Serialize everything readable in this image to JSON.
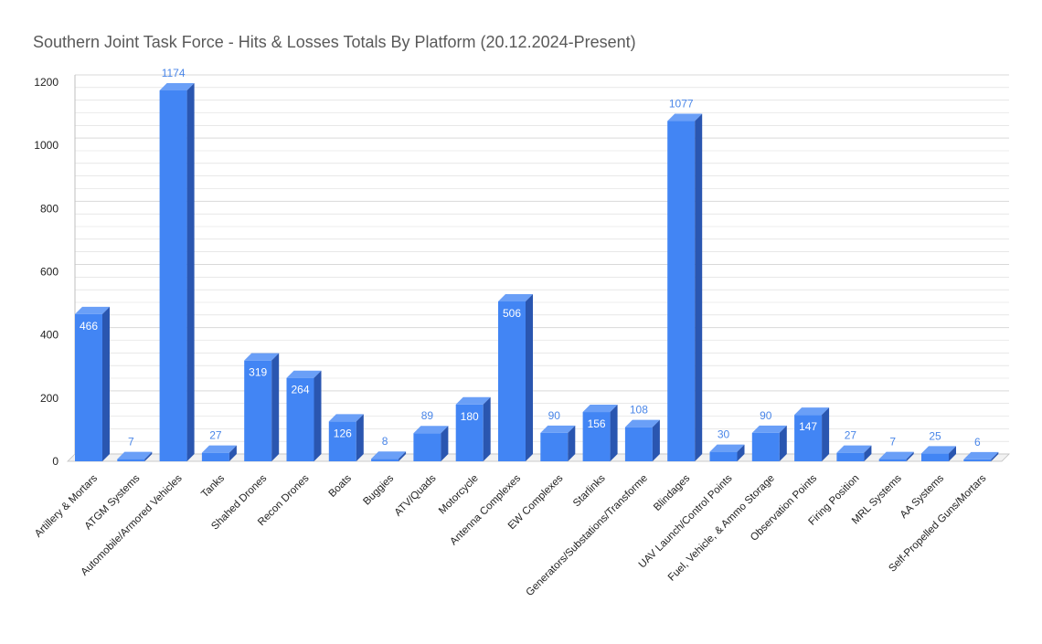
{
  "chart_data": {
    "type": "bar",
    "title": "Southern Joint Task Force - Hits & Losses Totals By Platform (20.12.2024-Present)",
    "xlabel": "",
    "ylabel": "",
    "ylim": [
      0,
      1200
    ],
    "yticks": [
      "0",
      "200",
      "400",
      "600",
      "800",
      "1000",
      "1200"
    ],
    "grid": true,
    "style": "3d",
    "categories": [
      "Artillery & Mortars",
      "ATGM Systems",
      "Automobile/Armored Vehicles",
      "Tanks",
      "Shahed Drones",
      "Recon Drones",
      "Boats",
      "Buggies",
      "ATV/Quads",
      "Motorcycle",
      "Antenna Complexes",
      "EW Complexes",
      "Starlinks",
      "Generators/Substations/Transforme",
      "Blindages",
      "UAV Launch/Control Points",
      "Fuel, Vehicle, & Ammo Storage",
      "Observation Points",
      "Firing Position",
      "MRL Systems",
      "AA Systems",
      "Self-Propelled Guns/Mortars"
    ],
    "values": [
      466,
      7,
      1174,
      27,
      319,
      264,
      126,
      8,
      89,
      180,
      506,
      90,
      156,
      108,
      1077,
      30,
      90,
      147,
      27,
      7,
      25,
      6
    ],
    "colors": {
      "front": "#4285f4",
      "top": "#6a9ff7",
      "side": "#2a56b0",
      "label_inside": "#ffffff",
      "label_outside": "#4a86e8",
      "grid": "#d9d9d9"
    }
  }
}
